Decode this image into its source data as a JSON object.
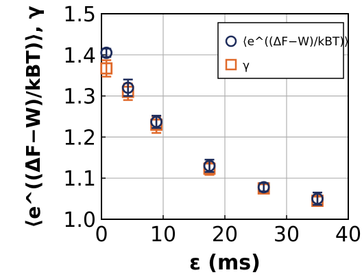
{
  "chart_data": {
    "type": "scatter",
    "xlabel": "ε (ms)",
    "ylabel": "⟨e^((ΔF−W)/kBT)⟩, γ",
    "xlim": [
      0,
      40
    ],
    "ylim": [
      1.0,
      1.5
    ],
    "x_ticks": [
      "0",
      "10",
      "20",
      "30",
      "40"
    ],
    "y_ticks": [
      "1.0",
      "1.1",
      "1.2",
      "1.3",
      "1.4",
      "1.5"
    ],
    "grid": true,
    "legend_position": "top-right",
    "series": [
      {
        "name": "⟨e^((ΔF−W)/kBT)⟩",
        "marker": "circle",
        "color": "#1f2d5c",
        "points": [
          {
            "x": 0.8,
            "y": 1.405,
            "err": 0.01
          },
          {
            "x": 4.3,
            "y": 1.32,
            "err": 0.02
          },
          {
            "x": 8.9,
            "y": 1.237,
            "err": 0.015
          },
          {
            "x": 17.5,
            "y": 1.13,
            "err": 0.015
          },
          {
            "x": 26.3,
            "y": 1.078,
            "err": 0.01
          },
          {
            "x": 35.0,
            "y": 1.05,
            "err": 0.015
          }
        ]
      },
      {
        "name": "γ",
        "marker": "square",
        "color": "#e06a2b",
        "points": [
          {
            "x": 0.8,
            "y": 1.367,
            "err": 0.02
          },
          {
            "x": 4.3,
            "y": 1.31,
            "err": 0.02
          },
          {
            "x": 8.9,
            "y": 1.23,
            "err": 0.02
          },
          {
            "x": 17.5,
            "y": 1.123,
            "err": 0.015
          },
          {
            "x": 26.3,
            "y": 1.075,
            "err": 0.01
          },
          {
            "x": 35.0,
            "y": 1.045,
            "err": 0.01
          }
        ]
      }
    ]
  }
}
